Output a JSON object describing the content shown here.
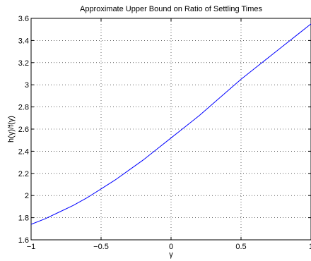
{
  "chart_data": {
    "type": "line",
    "title": "Approximate Upper Bound on Ratio of Settling Times",
    "xlabel": "γ",
    "ylabel": "h(γ)/f(γ)",
    "xlim": [
      -1,
      1
    ],
    "ylim": [
      1.6,
      3.6
    ],
    "xticks": [
      -1,
      -0.5,
      0,
      0.5,
      1
    ],
    "xtick_labels": [
      "−1",
      "−0.5",
      "0",
      "0.5",
      "1"
    ],
    "yticks": [
      1.6,
      1.8,
      2,
      2.2,
      2.4,
      2.6,
      2.8,
      3,
      3.2,
      3.4,
      3.6
    ],
    "ytick_labels": [
      "1.6",
      "1.8",
      "2",
      "2.2",
      "2.4",
      "2.6",
      "2.8",
      "3",
      "3.2",
      "3.4",
      "3.6"
    ],
    "grid": true,
    "grid_style": "dotted",
    "series": [
      {
        "color": "#0000ff",
        "x": [
          -1,
          -0.9,
          -0.8,
          -0.7,
          -0.6,
          -0.5,
          -0.4,
          -0.3,
          -0.2,
          -0.1,
          0,
          0.1,
          0.2,
          0.3,
          0.4,
          0.5,
          0.6,
          0.7,
          0.8,
          0.9,
          1
        ],
        "y": [
          1.74,
          1.79,
          1.85,
          1.91,
          1.98,
          2.06,
          2.14,
          2.23,
          2.32,
          2.42,
          2.52,
          2.62,
          2.72,
          2.83,
          2.94,
          3.05,
          3.15,
          3.25,
          3.35,
          3.45,
          3.55
        ]
      }
    ]
  }
}
